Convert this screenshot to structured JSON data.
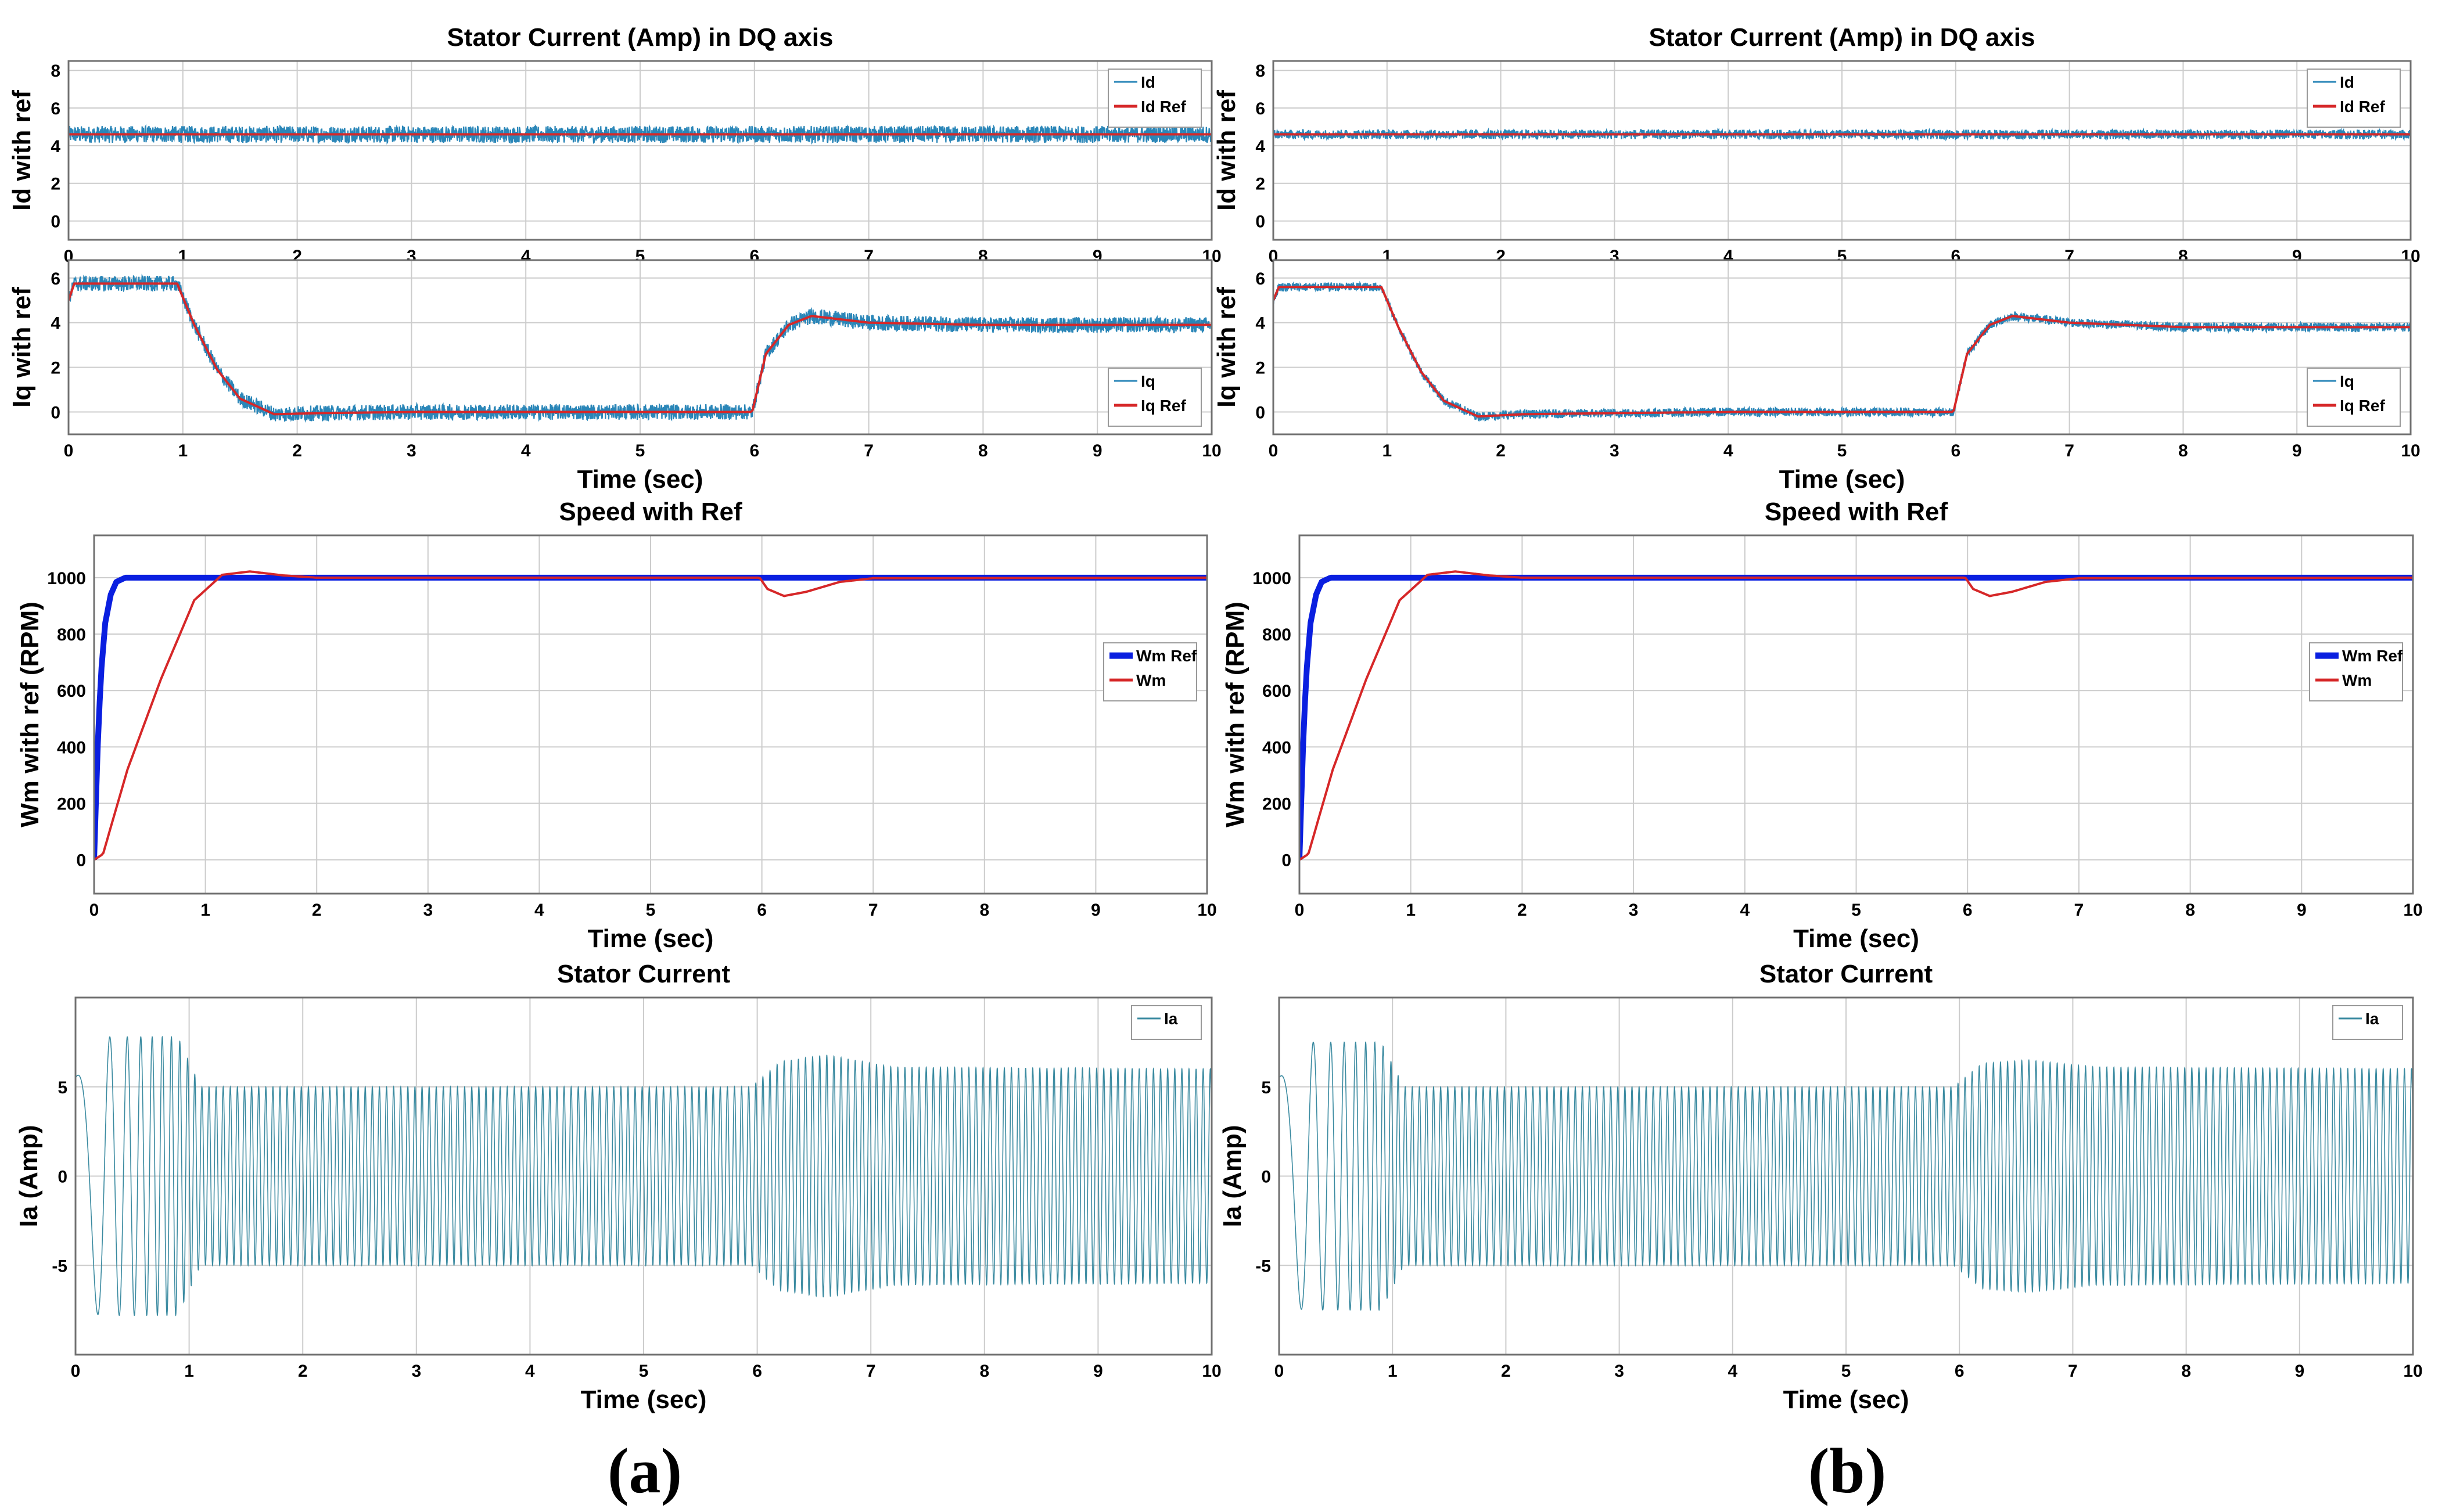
{
  "figure": {
    "panel_labels": [
      "(a)",
      "(b)"
    ],
    "colors": {
      "signal": "#2a86b8",
      "reference": "#d62728",
      "speed_ref": "#0a1fe0",
      "stator": "#3a8aa0",
      "grid": "#cccccc",
      "frame": "#707070"
    }
  },
  "chart_data": [
    {
      "id": "a_id",
      "column": "a",
      "type": "line",
      "title": "Stator Current (Amp) in DQ axis",
      "xlabel": "",
      "ylabel": "Id with ref",
      "xlim": [
        0,
        10
      ],
      "ylim": [
        -1,
        8.5
      ],
      "xticks": [
        0,
        1,
        2,
        3,
        4,
        5,
        6,
        7,
        8,
        9,
        10
      ],
      "yticks": [
        0,
        2,
        4,
        6,
        8
      ],
      "legend": [
        "Id",
        "Id Ref"
      ],
      "legend_position": "top-right",
      "grid": true,
      "series": [
        {
          "name": "Id",
          "style": "noisy",
          "x": [
            0,
            10
          ],
          "y": [
            4.6,
            4.6
          ],
          "noise": 0.45
        },
        {
          "name": "Id Ref",
          "style": "ref",
          "x": [
            0,
            10
          ],
          "y": [
            4.6,
            4.6
          ]
        }
      ]
    },
    {
      "id": "a_iq",
      "column": "a",
      "type": "line",
      "title": "",
      "xlabel": "Time (sec)",
      "ylabel": "Iq with ref",
      "xlim": [
        0,
        10
      ],
      "ylim": [
        -1,
        6.8
      ],
      "xticks": [
        0,
        1,
        2,
        3,
        4,
        5,
        6,
        7,
        8,
        9,
        10
      ],
      "yticks": [
        0,
        2,
        4,
        6
      ],
      "legend": [
        "Iq",
        "Iq Ref"
      ],
      "legend_position": "bottom-right",
      "grid": true,
      "series": [
        {
          "name": "Iq",
          "style": "noisy",
          "x": [
            0,
            0.05,
            0.95,
            1.1,
            1.3,
            1.5,
            1.8,
            2.2,
            3,
            4,
            5,
            5.98,
            6.1,
            6.3,
            6.5,
            7,
            8,
            10
          ],
          "y": [
            5.0,
            5.75,
            5.75,
            3.9,
            1.9,
            0.6,
            -0.1,
            -0.05,
            0,
            0,
            0,
            0,
            2.6,
            3.9,
            4.3,
            4.0,
            3.9,
            3.9
          ],
          "noise": 0.35
        },
        {
          "name": "Iq Ref",
          "style": "ref",
          "x": [
            0,
            0.05,
            0.95,
            1.1,
            1.3,
            1.5,
            1.8,
            2.2,
            3,
            4,
            5,
            5.98,
            6.1,
            6.3,
            6.5,
            7,
            8,
            10
          ],
          "y": [
            5.0,
            5.75,
            5.75,
            3.9,
            1.9,
            0.6,
            -0.1,
            -0.05,
            0,
            0,
            0,
            0,
            2.6,
            3.9,
            4.3,
            4.0,
            3.9,
            3.9
          ]
        }
      ]
    },
    {
      "id": "a_wm",
      "column": "a",
      "type": "line",
      "title": "Speed with Ref",
      "xlabel": "Time (sec)",
      "ylabel": "Wm with ref (RPM)",
      "xlim": [
        0,
        10
      ],
      "ylim": [
        -120,
        1150
      ],
      "xticks": [
        0,
        1,
        2,
        3,
        4,
        5,
        6,
        7,
        8,
        9,
        10
      ],
      "yticks": [
        0,
        200,
        400,
        600,
        800,
        1000
      ],
      "legend": [
        "Wm Ref",
        "Wm"
      ],
      "legend_position": "right",
      "grid": true,
      "series": [
        {
          "name": "Wm Ref",
          "style": "thick",
          "x": [
            0,
            0.03,
            0.06,
            0.1,
            0.15,
            0.2,
            0.28,
            0.4,
            10
          ],
          "y": [
            0,
            380,
            650,
            840,
            940,
            985,
            1000,
            1000,
            1000
          ]
        },
        {
          "name": "Wm",
          "style": "ref",
          "x": [
            0,
            0.08,
            0.3,
            0.6,
            0.9,
            1.15,
            1.4,
            1.7,
            2.0,
            3,
            5.98,
            6.05,
            6.2,
            6.4,
            6.7,
            7.0,
            10
          ],
          "y": [
            0,
            20,
            320,
            640,
            920,
            1010,
            1022,
            1008,
            1000,
            1000,
            1000,
            960,
            935,
            950,
            985,
            998,
            1000
          ]
        }
      ]
    },
    {
      "id": "a_ia",
      "column": "a",
      "type": "line",
      "title": "Stator Current",
      "xlabel": "Time (sec)",
      "ylabel": "Ia (Amp)",
      "xlim": [
        0,
        10
      ],
      "ylim": [
        -10,
        10
      ],
      "xticks": [
        0,
        1,
        2,
        3,
        4,
        5,
        6,
        7,
        8,
        9,
        10
      ],
      "yticks": [
        -5,
        0,
        5
      ],
      "legend": [
        "Ia"
      ],
      "legend_position": "top-right",
      "grid": true,
      "series": [
        {
          "name": "Ia",
          "style": "sine",
          "envelope_t": [
            0,
            0.2,
            0.9,
            1.1,
            5.95,
            6.2,
            6.6,
            7.2,
            10
          ],
          "envelope_a": [
            5.5,
            7.8,
            7.8,
            5.0,
            5.0,
            6.4,
            6.8,
            6.1,
            6.0
          ]
        }
      ]
    },
    {
      "id": "b_id",
      "column": "b",
      "type": "line",
      "title": "Stator Current (Amp) in DQ axis",
      "xlabel": "",
      "ylabel": "Id with ref",
      "xlim": [
        0,
        10
      ],
      "ylim": [
        -1,
        8.5
      ],
      "xticks": [
        0,
        1,
        2,
        3,
        4,
        5,
        6,
        7,
        8,
        9,
        10
      ],
      "yticks": [
        0,
        2,
        4,
        6,
        8
      ],
      "legend": [
        "Id",
        "Id Ref"
      ],
      "legend_position": "top-right",
      "grid": true,
      "series": [
        {
          "name": "Id",
          "style": "noisy",
          "x": [
            0,
            10
          ],
          "y": [
            4.6,
            4.6
          ],
          "noise": 0.25
        },
        {
          "name": "Id Ref",
          "style": "ref",
          "x": [
            0,
            10
          ],
          "y": [
            4.6,
            4.6
          ]
        }
      ]
    },
    {
      "id": "b_iq",
      "column": "b",
      "type": "line",
      "title": "",
      "xlabel": "Time (sec)",
      "ylabel": "Iq with ref",
      "xlim": [
        0,
        10
      ],
      "ylim": [
        -1,
        6.8
      ],
      "xticks": [
        0,
        1,
        2,
        3,
        4,
        5,
        6,
        7,
        8,
        9,
        10
      ],
      "yticks": [
        0,
        2,
        4,
        6
      ],
      "legend": [
        "Iq",
        "Iq Ref"
      ],
      "legend_position": "bottom-right",
      "grid": true,
      "series": [
        {
          "name": "Iq",
          "style": "noisy",
          "x": [
            0,
            0.05,
            0.95,
            1.1,
            1.3,
            1.5,
            1.8,
            2.2,
            3,
            4,
            5,
            5.98,
            6.1,
            6.3,
            6.5,
            7,
            8,
            10
          ],
          "y": [
            5.0,
            5.6,
            5.6,
            3.8,
            1.8,
            0.5,
            -0.2,
            -0.1,
            -0.05,
            0,
            0,
            0,
            2.6,
            3.9,
            4.3,
            4.0,
            3.8,
            3.8
          ],
          "noise": 0.2
        },
        {
          "name": "Iq Ref",
          "style": "ref",
          "x": [
            0,
            0.05,
            0.95,
            1.1,
            1.3,
            1.5,
            1.8,
            2.2,
            3,
            4,
            5,
            5.98,
            6.1,
            6.3,
            6.5,
            7,
            8,
            10
          ],
          "y": [
            5.0,
            5.6,
            5.6,
            3.8,
            1.8,
            0.5,
            -0.2,
            -0.1,
            -0.05,
            0,
            0,
            0,
            2.6,
            3.9,
            4.3,
            4.0,
            3.8,
            3.8
          ]
        }
      ]
    },
    {
      "id": "b_wm",
      "column": "b",
      "type": "line",
      "title": "Speed with Ref",
      "xlabel": "Time (sec)",
      "ylabel": "Wm with ref (RPM)",
      "xlim": [
        0,
        10
      ],
      "ylim": [
        -120,
        1150
      ],
      "xticks": [
        0,
        1,
        2,
        3,
        4,
        5,
        6,
        7,
        8,
        9,
        10
      ],
      "yticks": [
        0,
        200,
        400,
        600,
        800,
        1000
      ],
      "legend": [
        "Wm Ref",
        "Wm"
      ],
      "legend_position": "right",
      "grid": true,
      "series": [
        {
          "name": "Wm Ref",
          "style": "thick",
          "x": [
            0,
            0.03,
            0.06,
            0.1,
            0.15,
            0.2,
            0.28,
            0.4,
            10
          ],
          "y": [
            0,
            380,
            650,
            840,
            940,
            985,
            1000,
            1000,
            1000
          ]
        },
        {
          "name": "Wm",
          "style": "ref",
          "x": [
            0,
            0.08,
            0.3,
            0.6,
            0.9,
            1.15,
            1.4,
            1.7,
            2.0,
            3,
            5.98,
            6.05,
            6.2,
            6.4,
            6.7,
            7.0,
            10
          ],
          "y": [
            0,
            20,
            320,
            640,
            920,
            1010,
            1022,
            1008,
            1000,
            1000,
            1000,
            960,
            935,
            950,
            985,
            998,
            1000
          ]
        }
      ]
    },
    {
      "id": "b_ia",
      "column": "b",
      "type": "line",
      "title": "Stator Current",
      "xlabel": "Time (sec)",
      "ylabel": "Ia (Amp)",
      "xlim": [
        0,
        10
      ],
      "ylim": [
        -10,
        10
      ],
      "xticks": [
        0,
        1,
        2,
        3,
        4,
        5,
        6,
        7,
        8,
        9,
        10
      ],
      "yticks": [
        -5,
        0,
        5
      ],
      "legend": [
        "Ia"
      ],
      "legend_position": "top-right",
      "grid": true,
      "series": [
        {
          "name": "Ia",
          "style": "sine",
          "envelope_t": [
            0,
            0.2,
            0.9,
            1.1,
            5.95,
            6.2,
            6.6,
            7.2,
            10
          ],
          "envelope_a": [
            5.5,
            7.5,
            7.5,
            5.0,
            5.0,
            6.3,
            6.5,
            6.1,
            6.0
          ]
        }
      ]
    }
  ]
}
